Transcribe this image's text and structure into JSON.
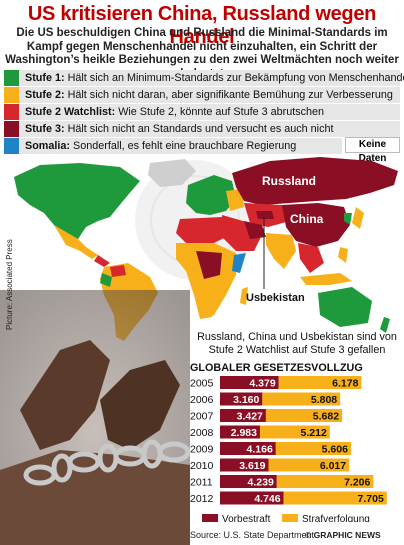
{
  "title": "US kritisieren China, Russland wegen Handel",
  "subtitle": "Die US beschuldigen China und Russland die Minimal-Standards im Kampf gegen Menschenhandel nicht einzuhalten, ein Schritt der Washington’s heikle Beziehungen zu den zwei Weltmächten noch weiter belastet",
  "legend": [
    {
      "key": "Stufe 1:",
      "text": "Hält sich an Minimum-Standards zur Bekämpfung von Menschenhandel",
      "color": "#1e9a3c"
    },
    {
      "key": "Stufe 2:",
      "text": "Hält sich nicht daran, aber signifikante Bemühung zur Verbesserung",
      "color": "#f8b01a"
    },
    {
      "key": "Stufe 2 Watchlist:",
      "text": "Wie Stufe 2, könnte auf Stufe 3 abrutschen",
      "color": "#d5272d"
    },
    {
      "key": "Stufe 3:",
      "text": "Hält sich nicht an Standards und versucht es auch nicht",
      "color": "#8a0f24"
    },
    {
      "key": "Somalia:",
      "text": "Sonderfall, es fehlt eine brauchbare Regierung",
      "color": "#1f83c4"
    }
  ],
  "no_data_label": "Keine Daten",
  "map_labels": {
    "russia": "Russland",
    "china": "China",
    "uzbekistan": "Usbekistan"
  },
  "photo_credit": "Picture: Associated Press",
  "watermark": "© GRAPHIC NEWS",
  "note": "Russland, China und Usbekistan sind von Stufe 2 Watchlist auf Stufe 3 gefallen",
  "chart_data": {
    "type": "bar",
    "title": "GLOBALER GESETZESVOLLZUG",
    "categories": [
      "2005",
      "2006",
      "2007",
      "2008",
      "2009",
      "2010",
      "2011",
      "2012"
    ],
    "series": [
      {
        "name": "Vorbestraft",
        "color": "#8a0f24",
        "values": [
          4379,
          3160,
          3427,
          2983,
          4166,
          3619,
          4239,
          4746
        ],
        "labels": [
          "4.379",
          "3.160",
          "3.427",
          "2.983",
          "4.166",
          "3.619",
          "4.239",
          "4.746"
        ]
      },
      {
        "name": "Strafverfolgung",
        "color": "#f8b01a",
        "values": [
          6178,
          5808,
          5682,
          5212,
          5606,
          6017,
          7206,
          7705
        ],
        "labels": [
          "6.178",
          "5.808",
          "5.682",
          "5.212",
          "5.606",
          "6.017",
          "7.206",
          "7.705"
        ]
      }
    ]
  },
  "source": "Source: U.S. State Department",
  "brand": "© GRAPHIC NEWS"
}
